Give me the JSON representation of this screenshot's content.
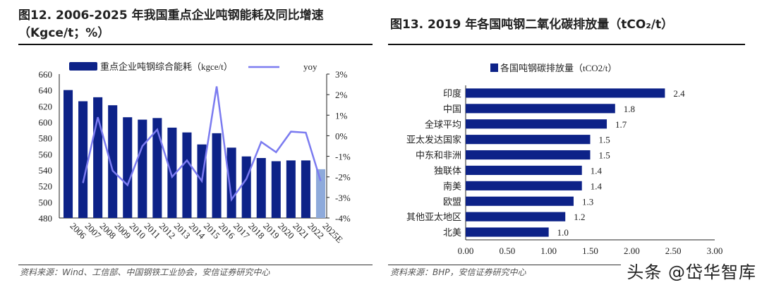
{
  "left": {
    "title_line1": "图12. 2006-2025 年我国重点企业吨钢能耗及同比增速",
    "title_line2": "（Kgce/t；%）",
    "source": "资料来源：Wind、工信部、中国钢铁工业协会，安信证券研究中心"
  },
  "right": {
    "title": "图13. 2019 年各国吨钢二氧化碳排放量（tCO₂/t）",
    "source": "资料来源：BHP，安信证券研究中心"
  },
  "watermark": "头条 @岱华智库",
  "colors": {
    "bar": "#0d2288",
    "bar_estimate": "#8eaadb",
    "line": "#7b7bf0"
  },
  "chart_data": [
    {
      "type": "bar+line",
      "categories": [
        "2006",
        "2007",
        "2008",
        "2009",
        "2010",
        "2011",
        "2012",
        "2013",
        "2014",
        "2015",
        "2016",
        "2017",
        "2018",
        "2019",
        "2020",
        "2021",
        "2022",
        "2025E"
      ],
      "series": [
        {
          "name": "重点企业吨钢综合能耗（kgce/t）",
          "type": "bar",
          "axis": "left",
          "values": [
            640,
            626,
            631,
            621,
            606,
            603,
            605,
            593,
            587,
            572,
            586,
            568,
            557,
            555,
            551,
            552,
            552,
            541
          ]
        },
        {
          "name": "yoy",
          "type": "line",
          "axis": "right",
          "values": [
            null,
            -2.3,
            0.9,
            -1.7,
            -2.4,
            -0.5,
            0.3,
            -2.0,
            -1.2,
            -2.2,
            2.4,
            -3.1,
            -2.1,
            -0.3,
            -0.8,
            0.2,
            0.15,
            -2.2
          ]
        }
      ],
      "ylim_left": [
        480,
        660
      ],
      "yticks_left": [
        "480",
        "500",
        "520",
        "540",
        "560",
        "580",
        "600",
        "620",
        "640",
        "660"
      ],
      "ylim_right": [
        -4,
        3
      ],
      "yticks_right": [
        "-4%",
        "-3%",
        "-2%",
        "-1%",
        "0%",
        "1%",
        "2%",
        "3%"
      ],
      "legend": "top",
      "grid": false
    },
    {
      "type": "bar",
      "orientation": "horizontal",
      "categories": [
        "印度",
        "中国",
        "全球平均",
        "亚太发达国家",
        "中东和非洲",
        "独联体",
        "南美",
        "欧盟",
        "其他亚太地区",
        "北美"
      ],
      "series": [
        {
          "name": "各国吨钢碳排放量（tCO2/t）",
          "values": [
            2.4,
            1.8,
            1.7,
            1.5,
            1.5,
            1.4,
            1.4,
            1.3,
            1.2,
            1.0
          ]
        }
      ],
      "value_labels": [
        "2.4",
        "1.8",
        "1.7",
        "1.5",
        "1.5",
        "1.4",
        "1.4",
        "1.3",
        "1.2",
        "1.0"
      ],
      "xlim": [
        0,
        3
      ],
      "xticks": [
        "0.00",
        "0.50",
        "1.00",
        "1.50",
        "2.00",
        "2.50",
        "3.00"
      ],
      "legend": "top",
      "grid": false
    }
  ]
}
